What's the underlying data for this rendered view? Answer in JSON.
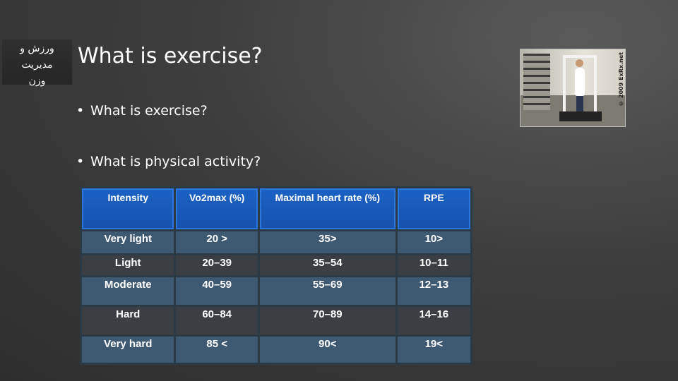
{
  "side_tag": {
    "line1": "ورزش و",
    "line2": "مدیریت",
    "line3": "وزن"
  },
  "title": "What is exercise?",
  "bullets": [
    "What is exercise?",
    "What is physical activity?"
  ],
  "photo": {
    "credit": "© 2009 ExRx.net"
  },
  "table": {
    "headers": [
      "Intensity",
      "Vo2max (%)",
      "Maximal heart rate (%)",
      "RPE"
    ],
    "rows": [
      [
        "Very light",
        "20 >",
        "35>",
        "10>"
      ],
      [
        "Light",
        "20–39",
        "35–54",
        "10–11"
      ],
      [
        "Moderate",
        "40–59",
        "55–69",
        "12–13"
      ],
      [
        "Hard",
        "60–84",
        "70–89",
        "14–16"
      ],
      [
        "Very hard",
        "85 <",
        "90<",
        "19<"
      ]
    ]
  }
}
